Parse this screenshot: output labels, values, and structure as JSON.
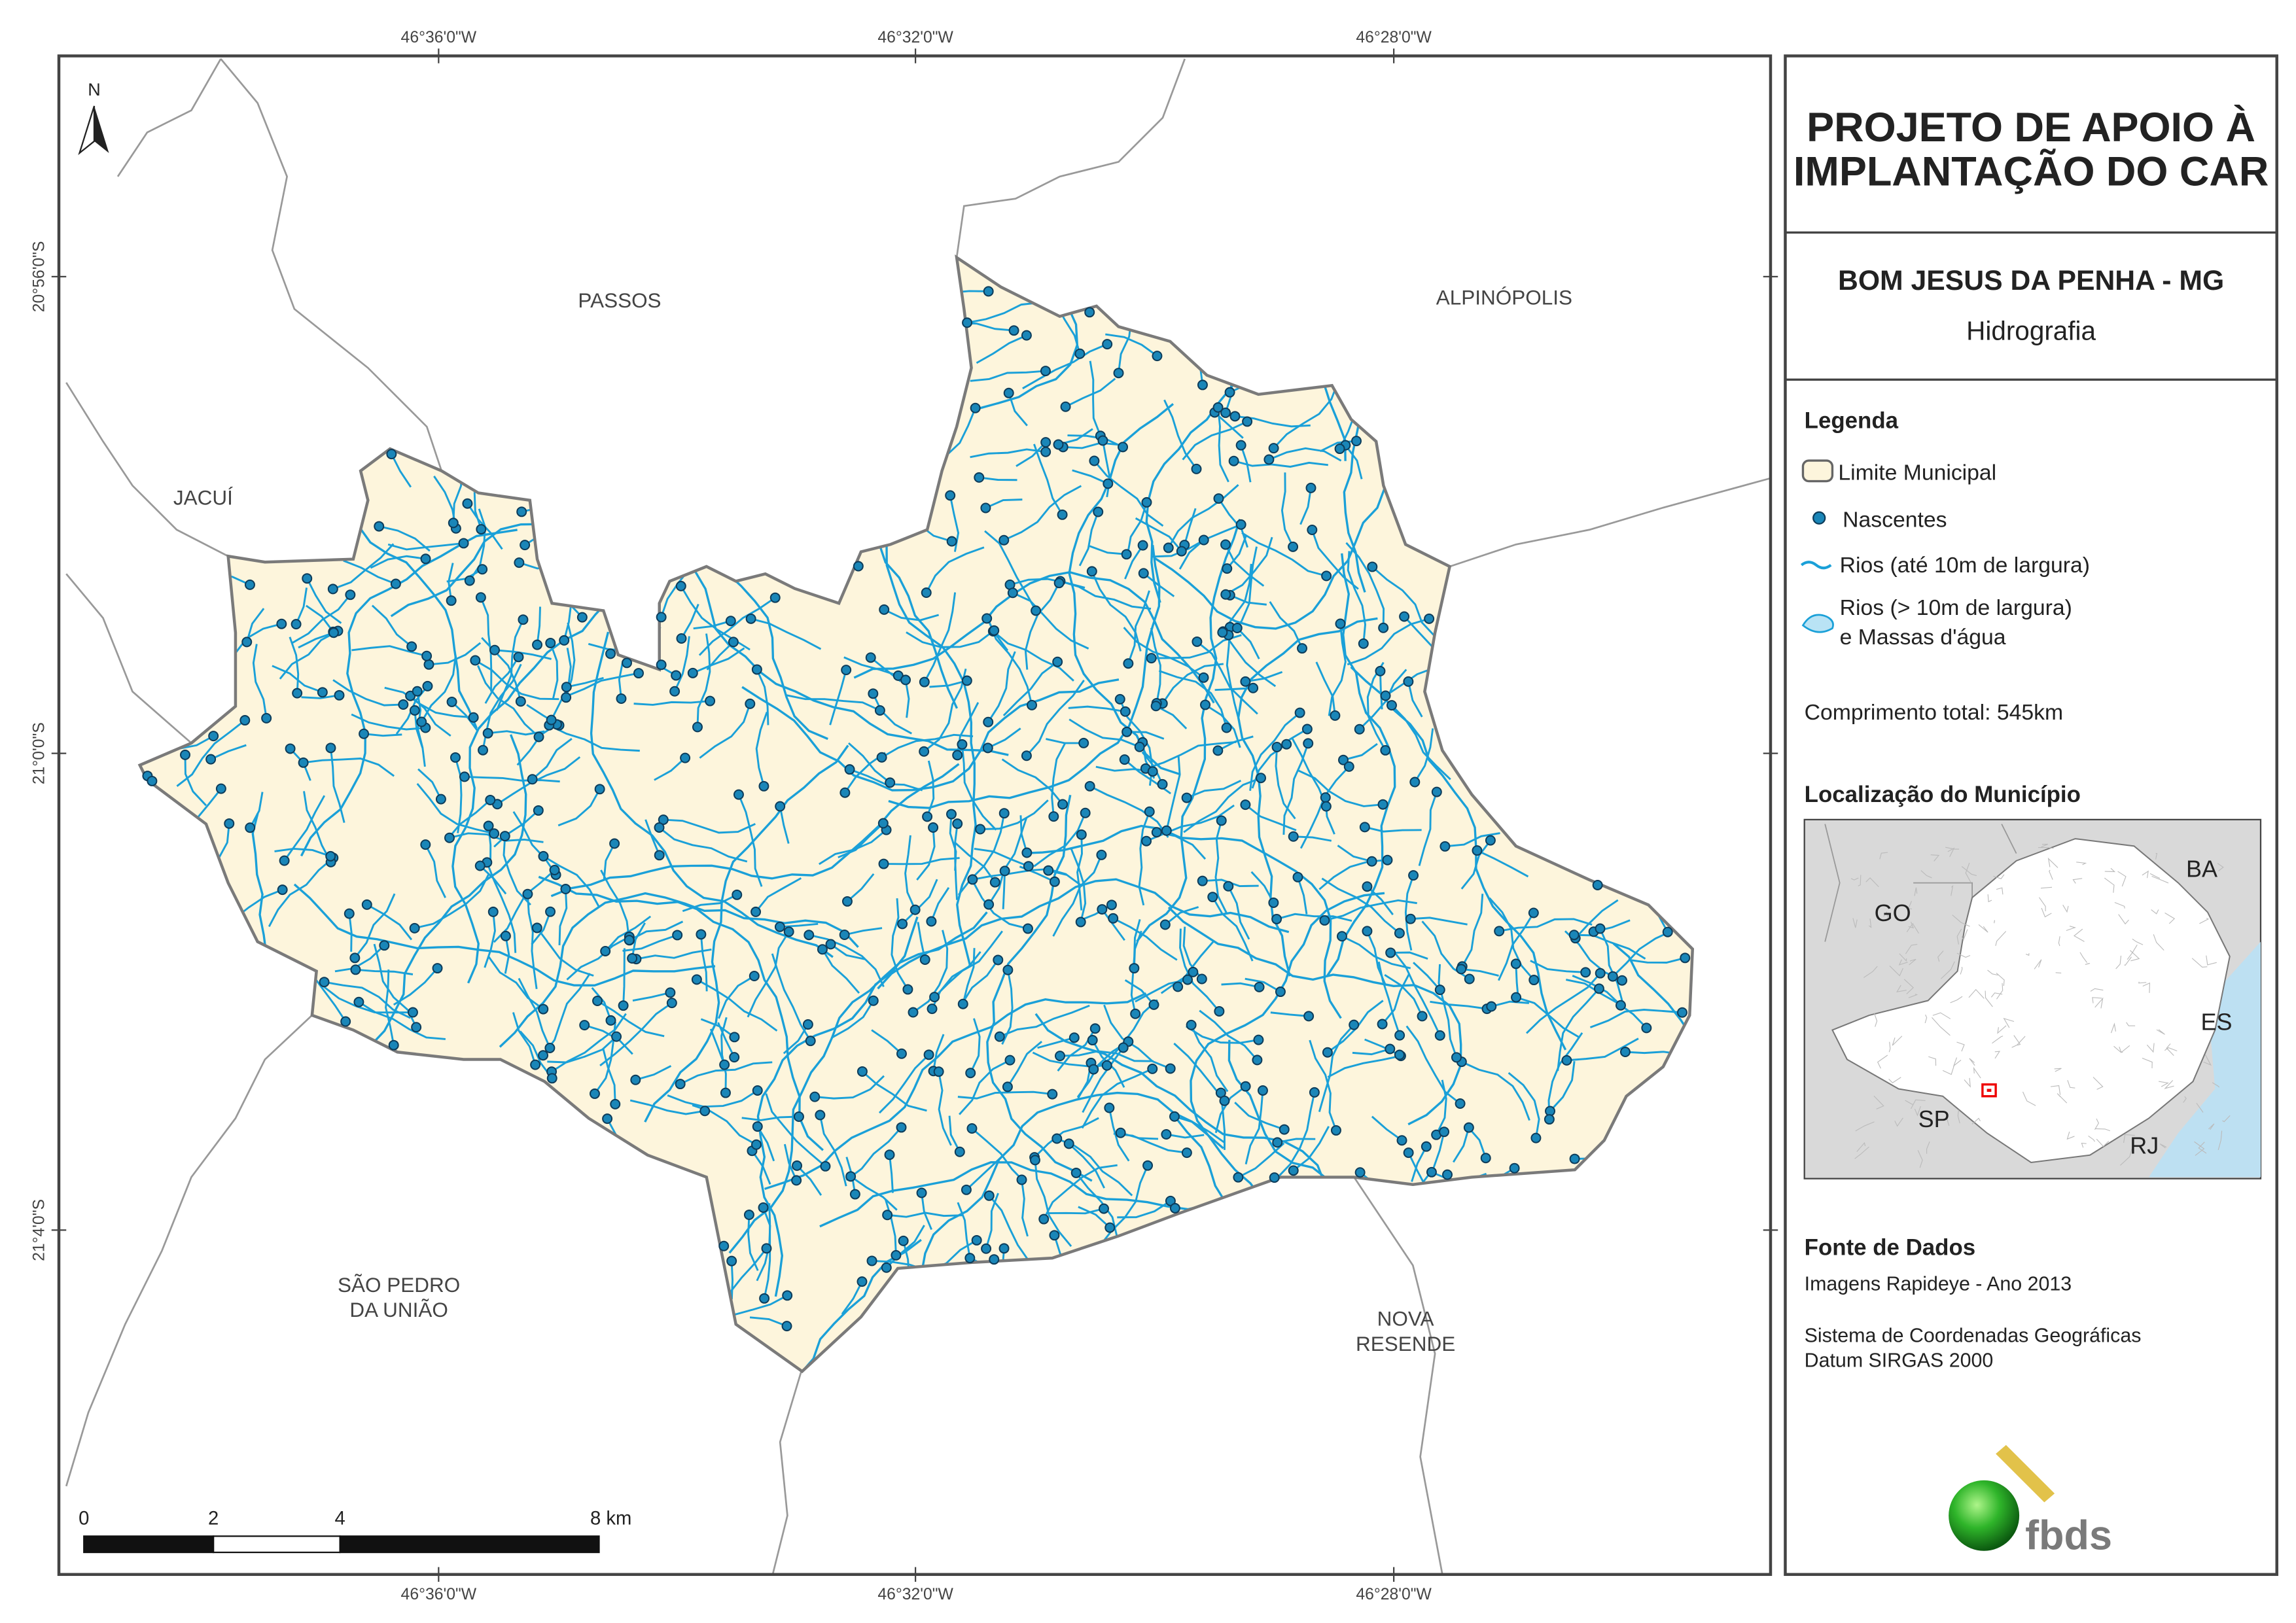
{
  "header": {
    "title_line1": "PROJETO DE APOIO À",
    "title_line2": "IMPLANTAÇÃO DO CAR",
    "municipality": "BOM JESUS DA PENHA - MG",
    "theme": "Hidrografia"
  },
  "legend": {
    "title": "Legenda",
    "items": [
      "Limite Municipal",
      "Nascentes",
      "Rios (até 10m de largura)",
      [
        "Rios (> 10m de largura)",
        "e Massas d'água"
      ]
    ],
    "total_length": "Comprimento total:  545km"
  },
  "location": {
    "title": "Localização do Município",
    "labels": [
      "GO",
      "BA",
      "ES",
      "SP",
      "RJ"
    ]
  },
  "source": {
    "title": "Fonte de Dados",
    "lines": [
      "Imagens Rapideye - Ano 2013",
      "Sistema de Coordenadas Geográficas",
      "Datum SIRGAS 2000"
    ]
  },
  "map": {
    "north": "N",
    "neighbors": [
      "PASSOS",
      "ALPINÓPOLIS",
      "JACUÍ",
      [
        "SÃO PEDRO",
        "DA UNIÃO"
      ],
      [
        "NOVA",
        "RESENDE"
      ]
    ],
    "longitudes": [
      "46°36'0\"W",
      "46°32'0\"W",
      "46°28'0\"W"
    ],
    "latitudes": [
      "20°56'0\"S",
      "21°0'0\"S",
      "21°4'0\"S"
    ],
    "scale": [
      "0",
      "2",
      "4",
      "8 km"
    ]
  },
  "logo": "fbds"
}
